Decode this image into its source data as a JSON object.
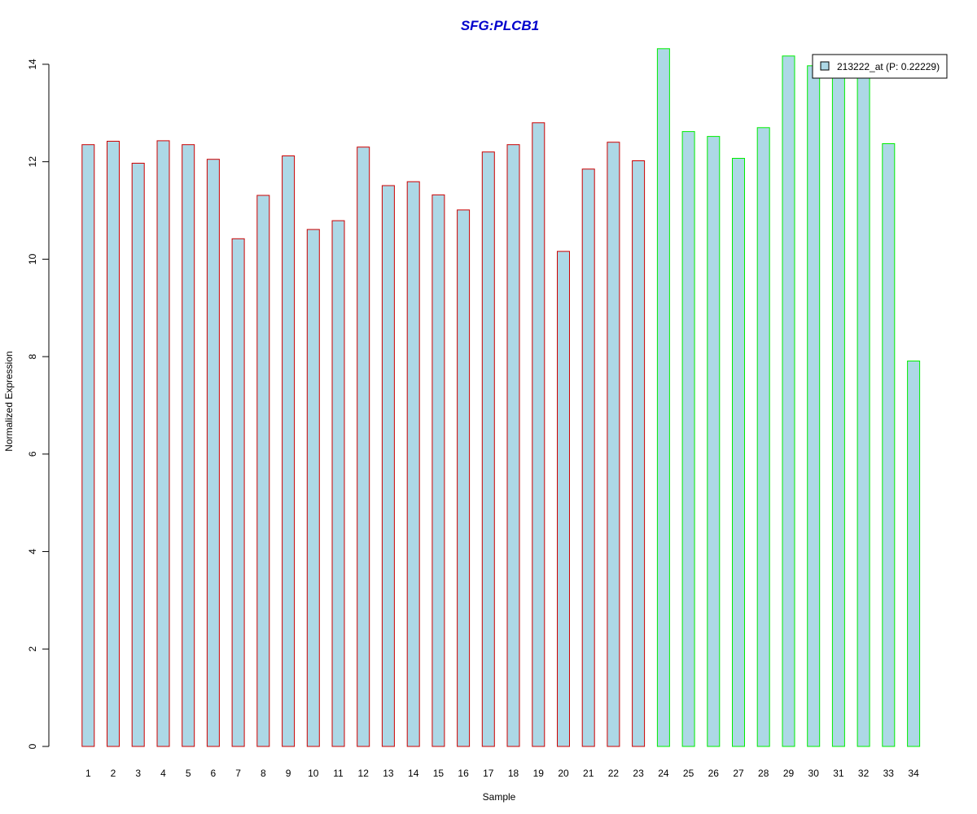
{
  "chart_data": {
    "type": "bar",
    "title": "SFG:PLCB1",
    "title_color": "#0000cc",
    "xlabel": "Sample",
    "ylabel": "Normalized Expression",
    "categories": [
      "1",
      "2",
      "3",
      "4",
      "5",
      "6",
      "7",
      "8",
      "9",
      "10",
      "11",
      "12",
      "13",
      "14",
      "15",
      "16",
      "17",
      "18",
      "19",
      "20",
      "21",
      "22",
      "23",
      "24",
      "25",
      "26",
      "27",
      "28",
      "29",
      "30",
      "31",
      "32",
      "33",
      "34"
    ],
    "y_ticks": [
      "0",
      "2",
      "4",
      "6",
      "8",
      "10",
      "12",
      "14"
    ],
    "ylim": [
      0,
      14.3
    ],
    "grid": false,
    "legend_position": "top-right",
    "series": [
      {
        "name": "213222_at (P: 0.22229)",
        "fill_color": "#add8e6",
        "values": [
          12.35,
          12.42,
          11.97,
          12.43,
          12.35,
          12.05,
          10.42,
          11.31,
          12.12,
          10.61,
          10.79,
          12.3,
          11.51,
          11.59,
          11.32,
          11.01,
          12.2,
          12.35,
          12.8,
          10.16,
          11.85,
          12.4,
          12.02,
          14.32,
          12.62,
          12.52,
          12.07,
          12.7,
          14.17,
          13.97,
          13.85,
          13.85,
          12.37,
          7.91
        ],
        "border_colors": [
          "#cc0000",
          "#cc0000",
          "#cc0000",
          "#cc0000",
          "#cc0000",
          "#cc0000",
          "#cc0000",
          "#cc0000",
          "#cc0000",
          "#cc0000",
          "#cc0000",
          "#cc0000",
          "#cc0000",
          "#cc0000",
          "#cc0000",
          "#cc0000",
          "#cc0000",
          "#cc0000",
          "#cc0000",
          "#cc0000",
          "#cc0000",
          "#cc0000",
          "#cc0000",
          "#00ee00",
          "#00ee00",
          "#00ee00",
          "#00ee00",
          "#00ee00",
          "#00ee00",
          "#00ee00",
          "#00ee00",
          "#00ee00",
          "#00ee00",
          "#00ee00"
        ]
      }
    ]
  }
}
